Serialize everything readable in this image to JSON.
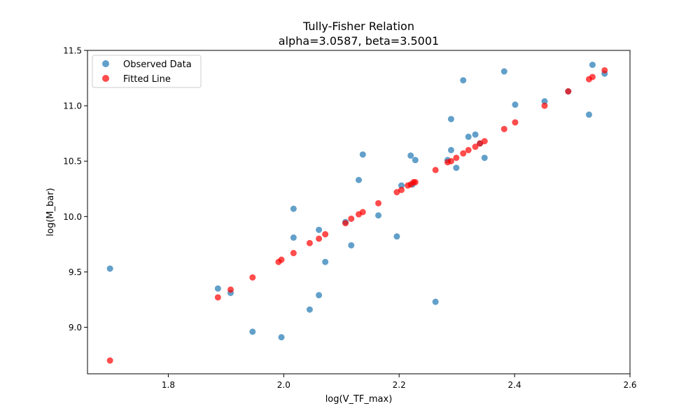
{
  "chart_data": {
    "type": "scatter",
    "title": "Tully-Fisher Relation",
    "subtitle": "alpha=3.0587, beta=3.5001",
    "xlabel": "log(V_TF_max)",
    "ylabel": "log(M_bar)",
    "xlim": [
      1.66,
      2.6
    ],
    "ylim": [
      8.58,
      11.5
    ],
    "xticks": [
      1.8,
      2.0,
      2.2,
      2.4,
      2.6
    ],
    "xtick_labels": [
      "1.8",
      "2.0",
      "2.2",
      "2.4",
      "2.6"
    ],
    "yticks": [
      9.0,
      9.5,
      10.0,
      10.5,
      11.0,
      11.5
    ],
    "ytick_labels": [
      "9.0",
      "9.5",
      "10.0",
      "10.5",
      "11.0",
      "11.5"
    ],
    "grid": false,
    "legend_position": "top-left",
    "series": [
      {
        "name": "Observed Data",
        "color": "#1f77b4",
        "opacity": 0.7,
        "points": [
          [
            1.699,
            9.53
          ],
          [
            1.886,
            9.35
          ],
          [
            1.908,
            9.31
          ],
          [
            1.946,
            8.96
          ],
          [
            1.996,
            8.91
          ],
          [
            2.017,
            10.07
          ],
          [
            2.017,
            9.81
          ],
          [
            2.045,
            9.16
          ],
          [
            2.061,
            9.88
          ],
          [
            2.061,
            9.29
          ],
          [
            2.072,
            9.59
          ],
          [
            2.107,
            9.95
          ],
          [
            2.117,
            9.74
          ],
          [
            2.13,
            10.33
          ],
          [
            2.137,
            10.56
          ],
          [
            2.164,
            10.01
          ],
          [
            2.196,
            9.82
          ],
          [
            2.204,
            10.28
          ],
          [
            2.22,
            10.55
          ],
          [
            2.223,
            10.29
          ],
          [
            2.228,
            10.51
          ],
          [
            2.263,
            9.23
          ],
          [
            2.284,
            10.51
          ],
          [
            2.29,
            10.88
          ],
          [
            2.29,
            10.6
          ],
          [
            2.299,
            10.44
          ],
          [
            2.311,
            11.23
          ],
          [
            2.32,
            10.72
          ],
          [
            2.332,
            10.74
          ],
          [
            2.34,
            10.66
          ],
          [
            2.348,
            10.53
          ],
          [
            2.382,
            11.31
          ],
          [
            2.401,
            11.01
          ],
          [
            2.452,
            11.04
          ],
          [
            2.493,
            11.13
          ],
          [
            2.529,
            10.92
          ],
          [
            2.535,
            11.37
          ],
          [
            2.556,
            11.29
          ]
        ]
      },
      {
        "name": "Fitted Line",
        "color": "#ff0000",
        "opacity": 0.7,
        "points": [
          [
            1.699,
            8.7
          ],
          [
            1.886,
            9.27
          ],
          [
            1.908,
            9.34
          ],
          [
            1.946,
            9.45
          ],
          [
            1.991,
            9.59
          ],
          [
            1.996,
            9.61
          ],
          [
            2.017,
            9.67
          ],
          [
            2.045,
            9.76
          ],
          [
            2.061,
            9.8
          ],
          [
            2.072,
            9.84
          ],
          [
            2.107,
            9.94
          ],
          [
            2.117,
            9.98
          ],
          [
            2.13,
            10.02
          ],
          [
            2.137,
            10.04
          ],
          [
            2.164,
            10.12
          ],
          [
            2.196,
            10.22
          ],
          [
            2.204,
            10.24
          ],
          [
            2.215,
            10.28
          ],
          [
            2.22,
            10.29
          ],
          [
            2.225,
            10.31
          ],
          [
            2.228,
            10.31
          ],
          [
            2.263,
            10.42
          ],
          [
            2.284,
            10.49
          ],
          [
            2.29,
            10.5
          ],
          [
            2.299,
            10.53
          ],
          [
            2.311,
            10.57
          ],
          [
            2.32,
            10.6
          ],
          [
            2.332,
            10.63
          ],
          [
            2.34,
            10.66
          ],
          [
            2.348,
            10.68
          ],
          [
            2.382,
            10.79
          ],
          [
            2.401,
            10.85
          ],
          [
            2.452,
            11.0
          ],
          [
            2.493,
            11.13
          ],
          [
            2.529,
            11.24
          ],
          [
            2.535,
            11.26
          ],
          [
            2.556,
            11.32
          ]
        ]
      }
    ]
  }
}
